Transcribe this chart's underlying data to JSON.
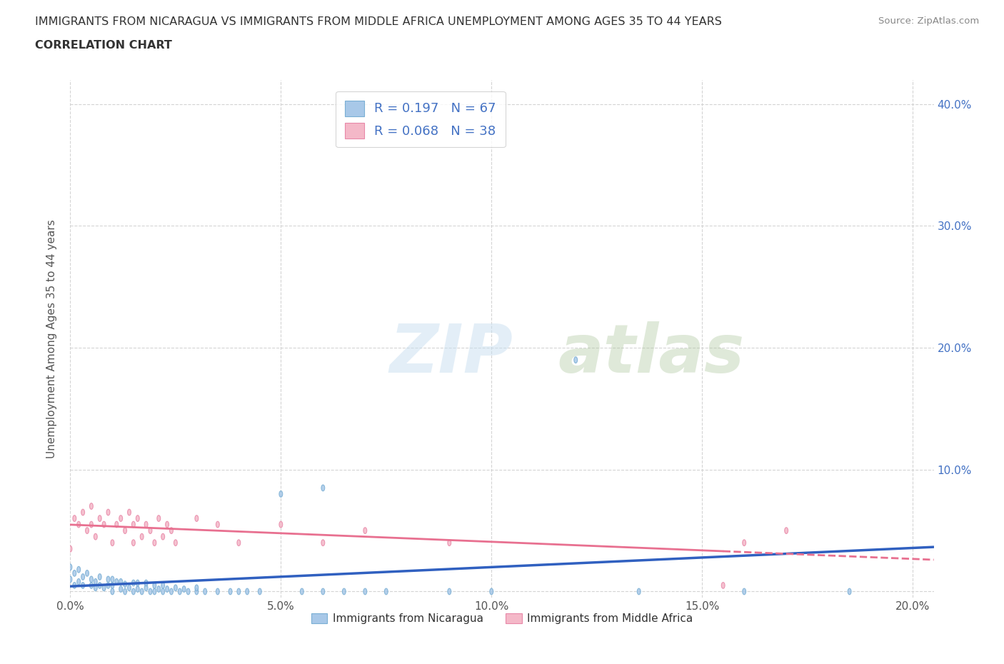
{
  "title_line1": "IMMIGRANTS FROM NICARAGUA VS IMMIGRANTS FROM MIDDLE AFRICA UNEMPLOYMENT AMONG AGES 35 TO 44 YEARS",
  "title_line2": "CORRELATION CHART",
  "source": "Source: ZipAtlas.com",
  "ylabel": "Unemployment Among Ages 35 to 44 years",
  "xlim": [
    0.0,
    0.205
  ],
  "ylim": [
    -0.005,
    0.42
  ],
  "xticks": [
    0.0,
    0.05,
    0.1,
    0.15,
    0.2
  ],
  "xtick_labels": [
    "0.0%",
    "5.0%",
    "10.0%",
    "15.0%",
    "20.0%"
  ],
  "yticks": [
    0.0,
    0.1,
    0.2,
    0.3,
    0.4
  ],
  "ytick_labels_right": [
    "",
    "10.0%",
    "20.0%",
    "30.0%",
    "40.0%"
  ],
  "background_color": "#ffffff",
  "grid_color": "#d0d0d0",
  "watermark_zip": "ZIP",
  "watermark_atlas": "atlas",
  "nicaragua_color": "#a8c8e8",
  "nicaragua_edge": "#7aafd4",
  "middle_africa_color": "#f4b8c8",
  "middle_africa_edge": "#e888a8",
  "nic_line_color": "#3060c0",
  "ma_line_color": "#e87090",
  "R_nicaragua": 0.197,
  "N_nicaragua": 67,
  "R_middle_africa": 0.068,
  "N_middle_africa": 38,
  "legend_label_nicaragua": "Immigrants from Nicaragua",
  "legend_label_middle_africa": "Immigrants from Middle Africa",
  "nicaragua_scatter_x": [
    0.0,
    0.0,
    0.001,
    0.001,
    0.002,
    0.002,
    0.003,
    0.003,
    0.004,
    0.005,
    0.005,
    0.006,
    0.006,
    0.007,
    0.007,
    0.008,
    0.009,
    0.009,
    0.01,
    0.01,
    0.01,
    0.011,
    0.012,
    0.012,
    0.013,
    0.013,
    0.014,
    0.015,
    0.015,
    0.016,
    0.016,
    0.017,
    0.018,
    0.018,
    0.019,
    0.02,
    0.02,
    0.021,
    0.022,
    0.022,
    0.023,
    0.024,
    0.025,
    0.026,
    0.027,
    0.028,
    0.03,
    0.03,
    0.032,
    0.035,
    0.038,
    0.04,
    0.042,
    0.045,
    0.05,
    0.055,
    0.06,
    0.065,
    0.07,
    0.075,
    0.09,
    0.1,
    0.12,
    0.135,
    0.06,
    0.16,
    0.185
  ],
  "nicaragua_scatter_y": [
    0.01,
    0.02,
    0.005,
    0.015,
    0.008,
    0.018,
    0.005,
    0.012,
    0.015,
    0.005,
    0.01,
    0.003,
    0.008,
    0.005,
    0.012,
    0.003,
    0.005,
    0.01,
    0.0,
    0.005,
    0.01,
    0.008,
    0.002,
    0.008,
    0.0,
    0.006,
    0.003,
    0.0,
    0.007,
    0.002,
    0.007,
    0.0,
    0.003,
    0.007,
    0.0,
    0.0,
    0.005,
    0.002,
    0.0,
    0.005,
    0.002,
    0.0,
    0.003,
    0.0,
    0.002,
    0.0,
    0.0,
    0.003,
    0.0,
    0.0,
    0.0,
    0.0,
    0.0,
    0.0,
    0.08,
    0.0,
    0.0,
    0.0,
    0.0,
    0.0,
    0.0,
    0.0,
    0.19,
    0.0,
    0.085,
    0.0,
    0.0
  ],
  "middle_africa_scatter_x": [
    0.0,
    0.001,
    0.002,
    0.003,
    0.004,
    0.005,
    0.005,
    0.006,
    0.007,
    0.008,
    0.009,
    0.01,
    0.011,
    0.012,
    0.013,
    0.014,
    0.015,
    0.015,
    0.016,
    0.017,
    0.018,
    0.019,
    0.02,
    0.021,
    0.022,
    0.023,
    0.024,
    0.025,
    0.03,
    0.035,
    0.04,
    0.05,
    0.06,
    0.07,
    0.09,
    0.155,
    0.16,
    0.17
  ],
  "middle_africa_scatter_y": [
    0.035,
    0.06,
    0.055,
    0.065,
    0.05,
    0.055,
    0.07,
    0.045,
    0.06,
    0.055,
    0.065,
    0.04,
    0.055,
    0.06,
    0.05,
    0.065,
    0.04,
    0.055,
    0.06,
    0.045,
    0.055,
    0.05,
    0.04,
    0.06,
    0.045,
    0.055,
    0.05,
    0.04,
    0.06,
    0.055,
    0.04,
    0.055,
    0.04,
    0.05,
    0.04,
    0.005,
    0.04,
    0.05
  ]
}
